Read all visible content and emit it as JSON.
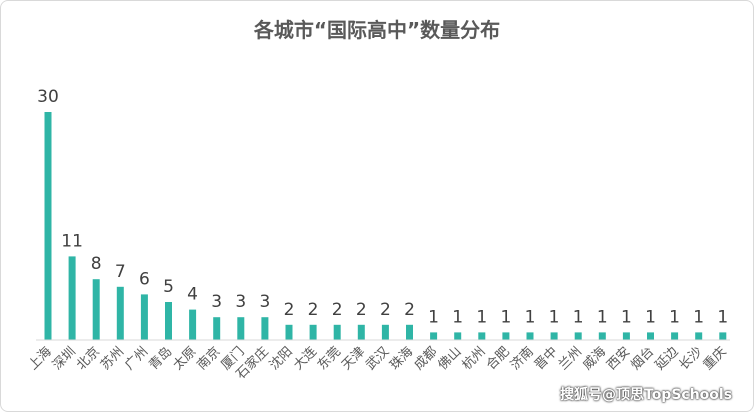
{
  "chart_data": {
    "type": "bar",
    "title": "各城市“国际高中”数量分布",
    "xlabel": "",
    "ylabel": "",
    "ylim": [
      0,
      30
    ],
    "grid": false,
    "legend": "none",
    "categories": [
      "上海",
      "深圳",
      "北京",
      "苏州",
      "广州",
      "青岛",
      "太原",
      "南京",
      "厦门",
      "石家庄",
      "沈阳",
      "大连",
      "东莞",
      "天津",
      "武汉",
      "珠海",
      "成都",
      "佛山",
      "杭州",
      "合肥",
      "济南",
      "晋中",
      "兰州",
      "威海",
      "西安",
      "烟台",
      "延边",
      "长沙",
      "重庆"
    ],
    "values": [
      30,
      11,
      8,
      7,
      6,
      5,
      4,
      3,
      3,
      3,
      2,
      2,
      2,
      2,
      2,
      2,
      1,
      1,
      1,
      1,
      1,
      1,
      1,
      1,
      1,
      1,
      1,
      1,
      1
    ],
    "bar_color": "#2fb5a6",
    "axis_color": "#d9d9d9"
  },
  "watermark": "搜狐号@顶思TopSchools"
}
